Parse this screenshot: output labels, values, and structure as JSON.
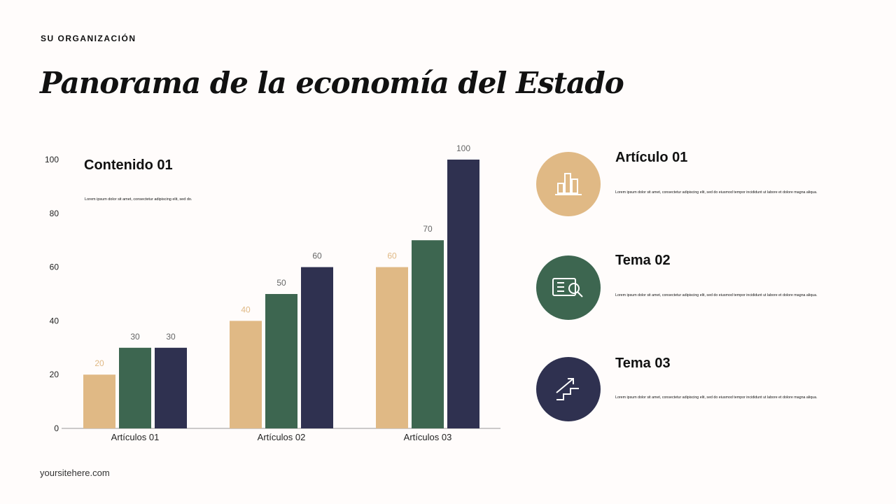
{
  "header": {
    "organization": "SU ORGANIZACIÓN",
    "title": "Panorama de la economía del Estado"
  },
  "footer": {
    "site": "yoursitehere.com"
  },
  "chart_panel": {
    "heading": "Contenido 01",
    "description": "Lorem ipsum dolor sit amet, consectetur adipiscing elit, sed do."
  },
  "chart_data": {
    "type": "bar",
    "categories": [
      "Artículos 01",
      "Artículos 02",
      "Artículos 03"
    ],
    "series": [
      {
        "values": [
          20,
          40,
          60
        ],
        "color": "#e0b985"
      },
      {
        "values": [
          30,
          50,
          70
        ],
        "color": "#3d6650"
      },
      {
        "values": [
          30,
          60,
          100
        ],
        "color": "#2f3150"
      }
    ],
    "ylim": [
      0,
      100
    ],
    "yticks": [
      0,
      20,
      40,
      60,
      80,
      100
    ],
    "data_labels": true,
    "grid": false
  },
  "cards": [
    {
      "title": "Artículo 01",
      "description": "Lorem ipsum dolor sit amet, consectetur adipiscing elit, sed do eiusmod tempor incididunt ut labore et dolore magna aliqua.",
      "icon": "bar-chart-icon",
      "color": "#e0b985"
    },
    {
      "title": "Tema 02",
      "description": "Lorem ipsum dolor sit amet, consectetur adipiscing elit, sed do eiusmod tempor incididunt ut labore et dolore magna aliqua.",
      "icon": "document-search-icon",
      "color": "#3d6650"
    },
    {
      "title": "Tema 03",
      "description": "Lorem ipsum dolor sit amet, consectetur adipiscing elit, sed do eiusmod tempor incididunt ut labore et dolore magna aliqua.",
      "icon": "stairs-growth-icon",
      "color": "#2f3150"
    }
  ]
}
